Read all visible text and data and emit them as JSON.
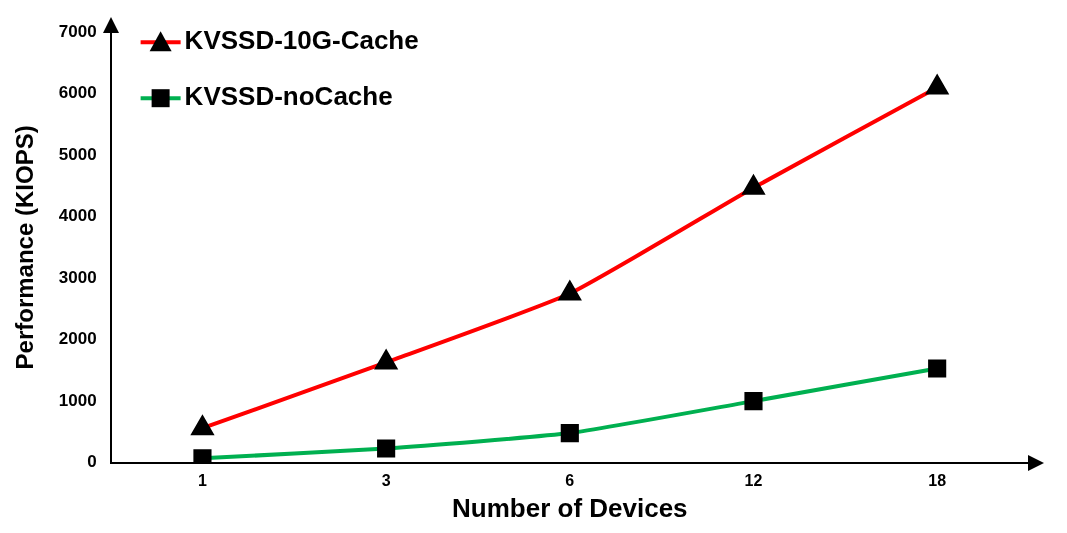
{
  "chart_data": {
    "type": "line",
    "xlabel": "Number of Devices",
    "ylabel": "Performance (KIOPS)",
    "categories": [
      "1",
      "3",
      "6",
      "12",
      "18"
    ],
    "ylim": [
      0,
      7000
    ],
    "yticks": [
      0,
      1000,
      2000,
      3000,
      4000,
      5000,
      6000,
      7000
    ],
    "grid": false,
    "legend": "top left",
    "line_style": "solid",
    "series": [
      {
        "name": "KVSSD-10G-Cache",
        "color": "#ff0000",
        "marker": "triangle",
        "values": [
          560,
          1630,
          2750,
          4470,
          6100
        ]
      },
      {
        "name": "KVSSD-noCache",
        "color": "#00b050",
        "marker": "square",
        "values": [
          70,
          230,
          480,
          1000,
          1530
        ]
      }
    ]
  }
}
